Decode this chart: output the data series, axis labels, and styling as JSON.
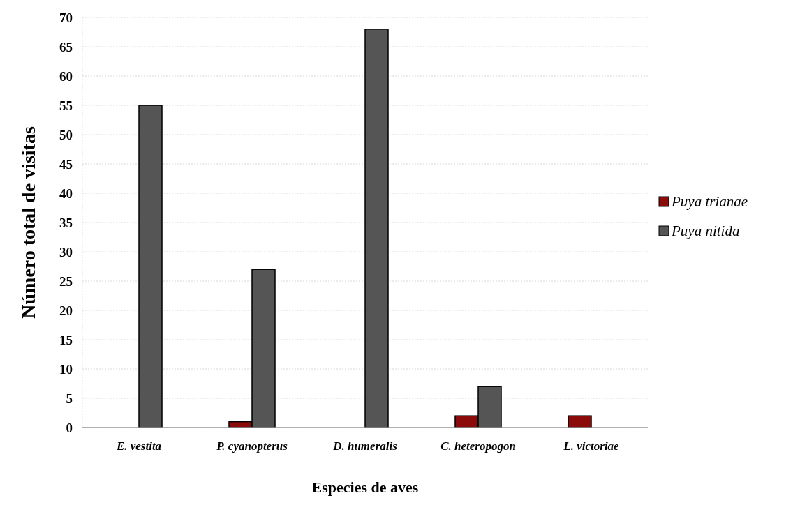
{
  "chart_data": {
    "type": "bar",
    "xlabel": "Especies de aves",
    "ylabel": "Número total de visitas",
    "categories": [
      "E. vestita",
      "P. cyanopterus",
      "D. humeralis",
      "C. heteropogon",
      "L. victoriae"
    ],
    "series": [
      {
        "name": "Puya trianae",
        "color": "#8b0a0a",
        "values": [
          0,
          1,
          0,
          2,
          2
        ]
      },
      {
        "name": "Puya nitida",
        "color": "#555555",
        "values": [
          55,
          27,
          68,
          7,
          0
        ]
      }
    ],
    "ylim": [
      0,
      70
    ],
    "yticks": [
      0,
      5,
      10,
      15,
      20,
      25,
      30,
      35,
      40,
      45,
      50,
      55,
      60,
      65,
      70
    ],
    "grid": "y",
    "legend": "right"
  }
}
